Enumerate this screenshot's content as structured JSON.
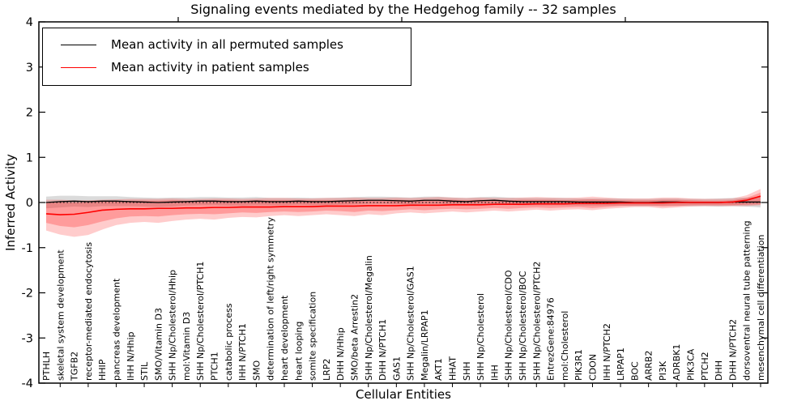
{
  "chart_data": {
    "type": "line",
    "title": "Signaling events mediated by the Hedgehog family -- 32 samples",
    "xlabel": "Cellular Entities",
    "ylabel": "Inferred Activity",
    "ylim": [
      -4,
      4
    ],
    "yticks": [
      4,
      3,
      2,
      1,
      0,
      -1,
      -2,
      -3,
      -4
    ],
    "grid": false,
    "zero_line": true,
    "legend_position": "upper left",
    "colors": {
      "permuted_line": "#000000",
      "permuted_band": "rgba(0,0,0,0.14)",
      "patient_line": "#ff0000",
      "patient_band_outer": "rgba(255,0,0,0.20)",
      "patient_band_inner": "rgba(255,0,0,0.24)"
    },
    "categories": [
      "PTHLH",
      "skeletal system development",
      "TGFB2",
      "receptor-mediated endocytosis",
      "HHIP",
      "pancreas development",
      "IHH N/Hhip",
      "STIL",
      "SMO/Vitamin D3",
      "SHH Np/Cholesterol/Hhip",
      "mol:Vitamin D3",
      "SHH Np/Cholesterol/PTCH1",
      "PTCH1",
      "catabolic process",
      "IHH N/PTCH1",
      "SMO",
      "determination of left/right symmetry",
      "heart development",
      "heart looping",
      "somite specification",
      "LRP2",
      "DHH N/Hhip",
      "SMO/beta Arrestin2",
      "SHH Np/Cholesterol/Megalin",
      "DHH N/PTCH1",
      "GAS1",
      "SHH Np/Cholesterol/GAS1",
      "Megalin/LRPAP1",
      "AKT1",
      "HHAT",
      "SHH",
      "SHH Np/Cholesterol",
      "IHH",
      "SHH Np/Cholesterol/CDO",
      "SHH Np/Cholesterol/BOC",
      "SHH Np/Cholesterol/PTCH2",
      "EntrezGene:84976",
      "mol:Cholesterol",
      "PIK3R1",
      "CDON",
      "IHH N/PTCH2",
      "LRPAP1",
      "BOC",
      "ARRB2",
      "PI3K",
      "ADRBK1",
      "PIK3CA",
      "PTCH2",
      "DHH",
      "DHH N/PTCH2",
      "dorsoventral neural tube patterning",
      "mesenchymal cell differentiation"
    ],
    "series": [
      {
        "name": "Mean activity in all permuted samples",
        "color": "#000000",
        "values": [
          0.0,
          0.02,
          0.03,
          0.02,
          0.03,
          0.03,
          0.02,
          0.01,
          0.0,
          0.01,
          0.02,
          0.03,
          0.03,
          0.02,
          0.02,
          0.03,
          0.02,
          0.02,
          0.03,
          0.02,
          0.02,
          0.03,
          0.04,
          0.05,
          0.05,
          0.04,
          0.03,
          0.05,
          0.05,
          0.03,
          0.02,
          0.04,
          0.05,
          0.03,
          0.02,
          0.02,
          0.02,
          0.02,
          0.01,
          0.01,
          0.01,
          0.01,
          0.0,
          0.0,
          0.01,
          0.01,
          0.0,
          0.0,
          0.0,
          0.01,
          0.01,
          0.01
        ],
        "bands": [
          {
            "upper": [
              0.13,
              0.15,
              0.15,
              0.14,
              0.14,
              0.14,
              0.12,
              0.11,
              0.1,
              0.11,
              0.11,
              0.12,
              0.12,
              0.11,
              0.11,
              0.12,
              0.1,
              0.1,
              0.11,
              0.1,
              0.1,
              0.11,
              0.12,
              0.13,
              0.13,
              0.12,
              0.11,
              0.13,
              0.13,
              0.11,
              0.1,
              0.12,
              0.13,
              0.11,
              0.1,
              0.1,
              0.1,
              0.1,
              0.09,
              0.09,
              0.09,
              0.09,
              0.08,
              0.08,
              0.09,
              0.09,
              0.08,
              0.08,
              0.09,
              0.1,
              0.11,
              0.13
            ],
            "lower": [
              -0.13,
              -0.11,
              -0.09,
              -0.1,
              -0.08,
              -0.08,
              -0.08,
              -0.09,
              -0.1,
              -0.09,
              -0.07,
              -0.06,
              -0.06,
              -0.07,
              -0.07,
              -0.06,
              -0.06,
              -0.06,
              -0.05,
              -0.06,
              -0.06,
              -0.05,
              -0.04,
              -0.03,
              -0.03,
              -0.04,
              -0.05,
              -0.03,
              -0.03,
              -0.05,
              -0.06,
              -0.04,
              -0.03,
              -0.05,
              -0.06,
              -0.06,
              -0.06,
              -0.06,
              -0.07,
              -0.07,
              -0.07,
              -0.07,
              -0.08,
              -0.08,
              -0.07,
              -0.07,
              -0.08,
              -0.08,
              -0.09,
              -0.08,
              -0.09,
              -0.11
            ],
            "color": "rgba(0,0,0,0.14)"
          }
        ]
      },
      {
        "name": "Mean activity in patient samples",
        "color": "#ff0000",
        "values": [
          -0.25,
          -0.27,
          -0.26,
          -0.22,
          -0.17,
          -0.15,
          -0.14,
          -0.14,
          -0.13,
          -0.13,
          -0.12,
          -0.12,
          -0.11,
          -0.11,
          -0.1,
          -0.1,
          -0.1,
          -0.09,
          -0.09,
          -0.09,
          -0.08,
          -0.08,
          -0.08,
          -0.07,
          -0.07,
          -0.07,
          -0.06,
          -0.06,
          -0.06,
          -0.05,
          -0.05,
          -0.05,
          -0.04,
          -0.04,
          -0.04,
          -0.03,
          -0.03,
          -0.03,
          -0.02,
          -0.02,
          -0.02,
          -0.01,
          -0.01,
          -0.01,
          -0.01,
          0.0,
          0.0,
          0.0,
          0.0,
          0.01,
          0.05,
          0.14
        ],
        "bands": [
          {
            "upper": [
              0.06,
              0.06,
              0.05,
              0.05,
              0.06,
              0.07,
              0.08,
              0.08,
              0.08,
              0.09,
              0.08,
              0.08,
              0.09,
              0.09,
              0.08,
              0.09,
              0.1,
              0.1,
              0.09,
              0.09,
              0.1,
              0.1,
              0.11,
              0.1,
              0.1,
              0.11,
              0.1,
              0.11,
              0.12,
              0.11,
              0.1,
              0.11,
              0.1,
              0.1,
              0.11,
              0.12,
              0.11,
              0.1,
              0.11,
              0.13,
              0.11,
              0.09,
              0.09,
              0.09,
              0.11,
              0.11,
              0.09,
              0.08,
              0.08,
              0.09,
              0.16,
              0.3
            ],
            "lower": [
              -0.62,
              -0.71,
              -0.76,
              -0.72,
              -0.6,
              -0.5,
              -0.45,
              -0.43,
              -0.45,
              -0.41,
              -0.38,
              -0.36,
              -0.38,
              -0.34,
              -0.32,
              -0.33,
              -0.3,
              -0.28,
              -0.3,
              -0.28,
              -0.26,
              -0.28,
              -0.3,
              -0.26,
              -0.28,
              -0.24,
              -0.22,
              -0.24,
              -0.22,
              -0.2,
              -0.22,
              -0.2,
              -0.18,
              -0.2,
              -0.18,
              -0.16,
              -0.18,
              -0.16,
              -0.15,
              -0.17,
              -0.14,
              -0.12,
              -0.1,
              -0.1,
              -0.13,
              -0.11,
              -0.09,
              -0.08,
              -0.08,
              -0.08,
              -0.08,
              -0.06
            ],
            "color": "rgba(255,0,0,0.20)"
          },
          {
            "upper": [
              0.01,
              0.01,
              0.0,
              0.01,
              0.02,
              0.03,
              0.04,
              0.04,
              0.04,
              0.05,
              0.04,
              0.04,
              0.05,
              0.05,
              0.04,
              0.05,
              0.05,
              0.05,
              0.05,
              0.05,
              0.05,
              0.05,
              0.06,
              0.05,
              0.05,
              0.06,
              0.05,
              0.06,
              0.06,
              0.06,
              0.05,
              0.06,
              0.05,
              0.05,
              0.06,
              0.06,
              0.06,
              0.05,
              0.06,
              0.07,
              0.06,
              0.05,
              0.05,
              0.05,
              0.06,
              0.06,
              0.05,
              0.04,
              0.04,
              0.05,
              0.1,
              0.22
            ],
            "lower": [
              -0.45,
              -0.52,
              -0.55,
              -0.5,
              -0.42,
              -0.35,
              -0.31,
              -0.3,
              -0.31,
              -0.28,
              -0.26,
              -0.25,
              -0.26,
              -0.24,
              -0.22,
              -0.23,
              -0.21,
              -0.2,
              -0.21,
              -0.2,
              -0.18,
              -0.19,
              -0.21,
              -0.18,
              -0.19,
              -0.17,
              -0.15,
              -0.17,
              -0.15,
              -0.14,
              -0.15,
              -0.14,
              -0.12,
              -0.14,
              -0.12,
              -0.11,
              -0.12,
              -0.11,
              -0.1,
              -0.12,
              -0.1,
              -0.08,
              -0.07,
              -0.07,
              -0.09,
              -0.08,
              -0.06,
              -0.06,
              -0.06,
              -0.06,
              -0.05,
              -0.04
            ],
            "color": "rgba(255,0,0,0.24)"
          }
        ]
      }
    ]
  }
}
